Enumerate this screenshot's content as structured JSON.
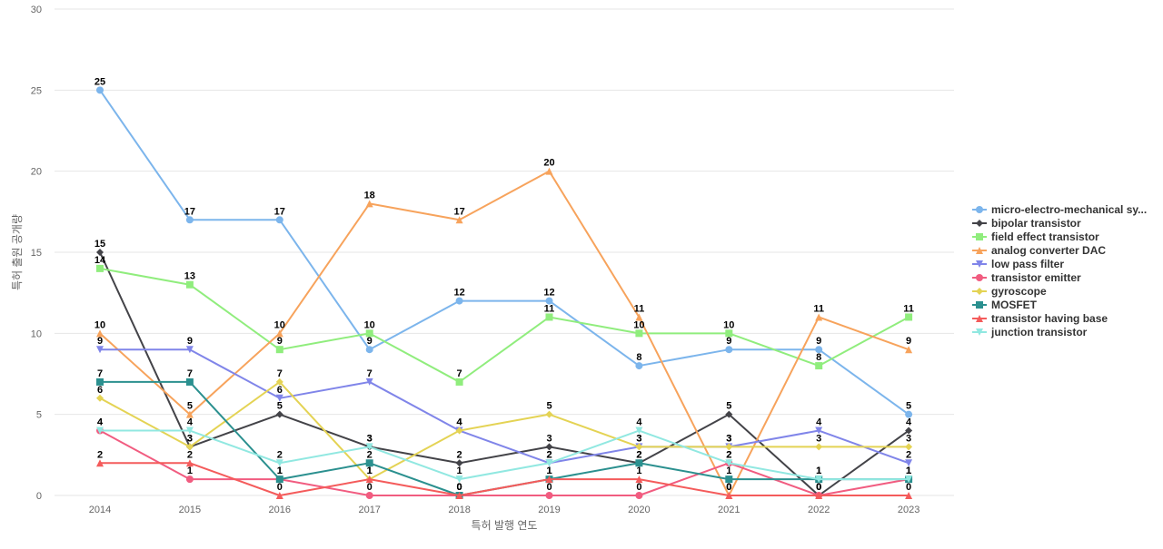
{
  "chart_data": {
    "type": "line",
    "xlabel": "특허 발행 연도",
    "ylabel": "특허 출원 공개량",
    "ylim": [
      0,
      30
    ],
    "yticks": [
      0,
      5,
      10,
      15,
      20,
      25,
      30
    ],
    "categories": [
      "2014",
      "2015",
      "2016",
      "2017",
      "2018",
      "2019",
      "2020",
      "2021",
      "2022",
      "2023"
    ],
    "grid": true,
    "legend_position": "right",
    "series": [
      {
        "name": "micro-electro-mechanical sy...",
        "color": "#7cb5ec",
        "marker": "circle",
        "values": [
          25,
          17,
          17,
          9,
          12,
          12,
          8,
          9,
          9,
          5
        ]
      },
      {
        "name": "bipolar transistor",
        "color": "#434348",
        "marker": "diamond",
        "values": [
          15,
          3,
          5,
          3,
          2,
          3,
          2,
          5,
          0,
          4
        ]
      },
      {
        "name": "field effect transistor",
        "color": "#90ed7d",
        "marker": "square",
        "values": [
          14,
          13,
          9,
          10,
          7,
          11,
          10,
          10,
          8,
          11
        ]
      },
      {
        "name": "analog converter DAC",
        "color": "#f7a35c",
        "marker": "triangle",
        "values": [
          10,
          5,
          10,
          18,
          17,
          20,
          11,
          0,
          11,
          9
        ]
      },
      {
        "name": "low pass filter",
        "color": "#8085e9",
        "marker": "triangle-down",
        "values": [
          9,
          9,
          6,
          7,
          4,
          2,
          3,
          3,
          4,
          2
        ]
      },
      {
        "name": "transistor emitter",
        "color": "#f15c80",
        "marker": "circle",
        "values": [
          4,
          1,
          1,
          0,
          0,
          0,
          0,
          2,
          0,
          1
        ]
      },
      {
        "name": "gyroscope",
        "color": "#e4d354",
        "marker": "diamond",
        "values": [
          6,
          3,
          7,
          1,
          4,
          5,
          3,
          3,
          3,
          3
        ]
      },
      {
        "name": "MOSFET",
        "color": "#2b908f",
        "marker": "square",
        "values": [
          7,
          7,
          1,
          2,
          0,
          1,
          2,
          1,
          1,
          1
        ]
      },
      {
        "name": "transistor having base",
        "color": "#f45b5b",
        "marker": "triangle",
        "values": [
          2,
          2,
          0,
          1,
          0,
          1,
          1,
          0,
          0,
          0
        ]
      },
      {
        "name": "junction transistor",
        "color": "#91e8e1",
        "marker": "triangle-down",
        "values": [
          4,
          4,
          2,
          3,
          1,
          2,
          4,
          2,
          1,
          1
        ]
      }
    ]
  }
}
